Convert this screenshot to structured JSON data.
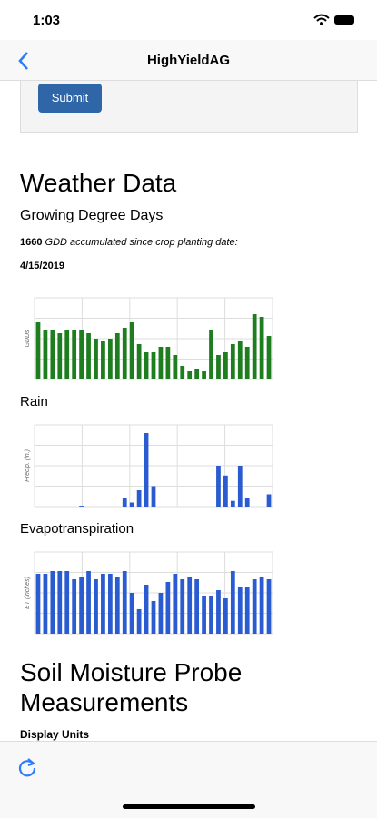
{
  "status_bar": {
    "time": "1:03"
  },
  "nav": {
    "title": "HighYieldAG"
  },
  "form": {
    "submit": "Submit"
  },
  "weather": {
    "heading": "Weather Data",
    "gdd_heading": "Growing Degree Days",
    "gdd_total": "1660",
    "gdd_text": "GDD accumulated since crop planting date:",
    "planting_date": "4/15/2019",
    "rain_heading": "Rain",
    "et_heading": "Evapotranspiration"
  },
  "chart_data": [
    {
      "type": "bar",
      "y_label": "GDDs",
      "color": "#1e7d1e",
      "ylim": [
        0,
        30
      ],
      "grid": true,
      "values": [
        21,
        18,
        18,
        17,
        18,
        18,
        18,
        17,
        15,
        14,
        15,
        17,
        19,
        21,
        13,
        10,
        10,
        12,
        12,
        9,
        5,
        3,
        4,
        3,
        18,
        9,
        10,
        13,
        14,
        12,
        24,
        23,
        16
      ]
    },
    {
      "type": "bar",
      "y_label": "Precip. (in.)",
      "color": "#2a5bd0",
      "ylim": [
        0,
        1
      ],
      "grid": true,
      "values": [
        0,
        0,
        0,
        0,
        0,
        0,
        0.01,
        0,
        0,
        0,
        0,
        0,
        0.1,
        0.05,
        0.2,
        0.9,
        0.25,
        0,
        0,
        0,
        0,
        0,
        0,
        0,
        0,
        0.5,
        0.38,
        0.07,
        0.5,
        0.1,
        0,
        0,
        0.15
      ]
    },
    {
      "type": "bar",
      "y_label": "ET (inches)",
      "color": "#2a5bd0",
      "ylim": [
        0,
        0.3
      ],
      "grid": true,
      "values": [
        0.22,
        0.22,
        0.23,
        0.23,
        0.23,
        0.2,
        0.21,
        0.23,
        0.2,
        0.22,
        0.22,
        0.21,
        0.23,
        0.15,
        0.09,
        0.18,
        0.12,
        0.15,
        0.19,
        0.22,
        0.2,
        0.21,
        0.2,
        0.14,
        0.14,
        0.16,
        0.13,
        0.23,
        0.17,
        0.17,
        0.2,
        0.21,
        0.2
      ]
    }
  ],
  "soil": {
    "heading": "Soil Moisture Probe Measurements",
    "display_units": "Display Units"
  }
}
